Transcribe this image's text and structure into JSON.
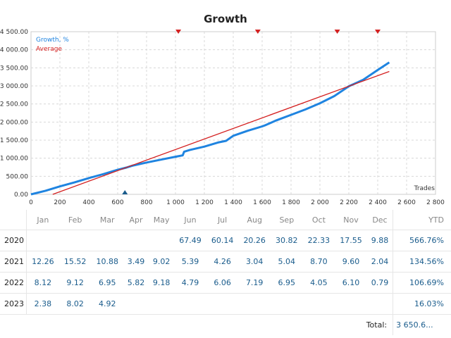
{
  "chart_data": {
    "type": "line",
    "title": "Growth",
    "xlabel": "Trades",
    "xlim": [
      0,
      2800
    ],
    "ylim": [
      0,
      4500
    ],
    "x_ticks": [
      "0",
      "200",
      "400",
      "600",
      "800",
      "1 000",
      "1 200",
      "1 400",
      "1 600",
      "1 800",
      "2 000",
      "2 200",
      "2 400",
      "2 600",
      "2 800"
    ],
    "y_ticks": [
      "0.00",
      "500.00",
      "1 000.00",
      "1 500.00",
      "2 000.00",
      "2 500.00",
      "3 000.00",
      "3 500.00",
      "4 000.00",
      "4 500.00"
    ],
    "grid": true,
    "legend_position": "top-left",
    "series": [
      {
        "name": "Growth, %",
        "color": "#1f84e0",
        "points": [
          [
            0,
            0
          ],
          [
            100,
            100
          ],
          [
            200,
            220
          ],
          [
            300,
            330
          ],
          [
            400,
            450
          ],
          [
            500,
            560
          ],
          [
            600,
            680
          ],
          [
            660,
            740
          ],
          [
            700,
            790
          ],
          [
            800,
            880
          ],
          [
            900,
            960
          ],
          [
            1000,
            1040
          ],
          [
            1050,
            1080
          ],
          [
            1060,
            1180
          ],
          [
            1100,
            1230
          ],
          [
            1200,
            1320
          ],
          [
            1300,
            1440
          ],
          [
            1350,
            1480
          ],
          [
            1400,
            1620
          ],
          [
            1500,
            1760
          ],
          [
            1600,
            1880
          ],
          [
            1620,
            1910
          ],
          [
            1700,
            2050
          ],
          [
            1800,
            2200
          ],
          [
            1900,
            2350
          ],
          [
            2000,
            2520
          ],
          [
            2100,
            2720
          ],
          [
            2200,
            2990
          ],
          [
            2300,
            3170
          ],
          [
            2400,
            3440
          ],
          [
            2480,
            3650
          ]
        ]
      },
      {
        "name": "Average",
        "color": "#d42020",
        "points": [
          [
            150,
            0
          ],
          [
            2480,
            3400
          ]
        ]
      }
    ],
    "markers_top_x": [
      1020,
      1570,
      2120,
      2400
    ],
    "markers_bottom_x": [
      650
    ]
  },
  "table": {
    "headers": [
      "Jan",
      "Feb",
      "Mar",
      "Apr",
      "May",
      "Jun",
      "Jul",
      "Aug",
      "Sep",
      "Oct",
      "Nov",
      "Dec"
    ],
    "ytd_header": "YTD",
    "rows": [
      {
        "year": "2020",
        "values": [
          "",
          "",
          "",
          "",
          "",
          "67.49",
          "60.14",
          "20.26",
          "30.82",
          "22.33",
          "17.55",
          "9.88"
        ],
        "ytd": "566.76%"
      },
      {
        "year": "2021",
        "values": [
          "12.26",
          "15.52",
          "10.88",
          "3.49",
          "9.02",
          "5.39",
          "4.26",
          "3.04",
          "5.04",
          "8.70",
          "9.60",
          "2.04"
        ],
        "ytd": "134.56%"
      },
      {
        "year": "2022",
        "values": [
          "8.12",
          "9.12",
          "6.95",
          "5.82",
          "9.18",
          "4.79",
          "6.06",
          "7.19",
          "6.95",
          "4.05",
          "6.10",
          "0.79"
        ],
        "ytd": "106.69%"
      },
      {
        "year": "2023",
        "values": [
          "2.38",
          "8.02",
          "4.92",
          "",
          "",
          "",
          "",
          "",
          "",
          "",
          "",
          ""
        ],
        "ytd": "16.03%"
      }
    ],
    "total_label": "Total:",
    "total_value": "3 650.6..."
  }
}
